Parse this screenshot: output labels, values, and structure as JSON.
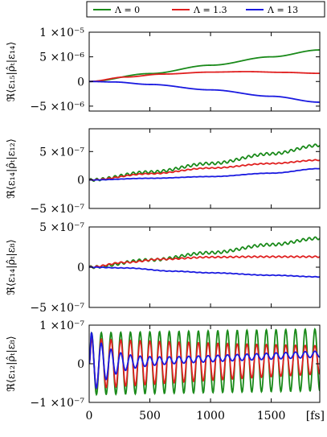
{
  "chart_data": [
    {
      "type": "line",
      "ylabel": "ℜ⟨ε₁₅|ρ̂ₜ|ε₁₄⟩",
      "ylim": [
        -6e-06,
        1e-05
      ],
      "yticks": [
        "1 ×10⁻⁵",
        "5 ×10⁻⁶",
        "0",
        "−5 ×10⁻⁶"
      ],
      "ytick_values": [
        1e-05,
        5e-06,
        0,
        -5e-06
      ],
      "series": [
        {
          "name": "Λ = 0",
          "color": "#1a8a1a",
          "x": [
            0,
            500,
            1000,
            1500,
            1900
          ],
          "y": [
            0,
            1.6e-06,
            3.3e-06,
            5e-06,
            6.4e-06
          ],
          "osc_amp": 0,
          "osc_period": 52
        },
        {
          "name": "Λ = 1.3",
          "color": "#e02020",
          "x": [
            0,
            300,
            600,
            1000,
            1300,
            1600,
            1900
          ],
          "y": [
            0,
            9e-07,
            1.5e-06,
            1.9e-06,
            2e-06,
            1.85e-06,
            1.65e-06
          ],
          "osc_amp": 0,
          "osc_period": 52
        },
        {
          "name": "Λ = 13",
          "color": "#1a1ae0",
          "x": [
            0,
            200,
            500,
            1000,
            1500,
            1900
          ],
          "y": [
            0,
            -1e-07,
            -6e-07,
            -1.7e-06,
            -3e-06,
            -4.2e-06
          ],
          "osc_amp": 0,
          "osc_period": 52
        }
      ]
    },
    {
      "type": "line",
      "ylabel": "ℜ⟨ε₁₄|ρ̂ₜ|ε₁₂⟩",
      "ylim": [
        -5e-07,
        9e-07
      ],
      "yticks": [
        "5 ×10⁻⁷",
        "0",
        "−5 ×10⁻⁷"
      ],
      "ytick_values": [
        5e-07,
        0,
        -5e-07
      ],
      "series": [
        {
          "name": "Λ = 0",
          "color": "#1a8a1a",
          "x": [
            0,
            500,
            1000,
            1500,
            1900
          ],
          "y": [
            0,
            1.4e-07,
            2.9e-07,
            4.6e-07,
            6.1e-07
          ],
          "osc_amp": 2.2e-08,
          "osc_period": 50
        },
        {
          "name": "Λ = 1.3",
          "color": "#e02020",
          "x": [
            0,
            500,
            1000,
            1500,
            1900
          ],
          "y": [
            0,
            1.1e-07,
            2.1e-07,
            2.9e-07,
            3.5e-07
          ],
          "osc_amp": 8e-09,
          "osc_period": 50
        },
        {
          "name": "Λ = 13",
          "color": "#1a1ae0",
          "x": [
            0,
            500,
            1000,
            1500,
            1900
          ],
          "y": [
            0,
            3e-08,
            6e-08,
            1.2e-07,
            2e-07
          ],
          "osc_amp": 2e-09,
          "osc_period": 50
        }
      ]
    },
    {
      "type": "line",
      "ylabel": "ℜ⟨ε₁₄|ρ̂ₜ|ε₈⟩",
      "ylim": [
        -5e-07,
        5e-07
      ],
      "yticks": [
        "5 ×10⁻⁷",
        "0",
        "−5 ×10⁻⁷"
      ],
      "ytick_values": [
        5e-07,
        0,
        -5e-07
      ],
      "series": [
        {
          "name": "Λ = 0",
          "color": "#1a8a1a",
          "x": [
            0,
            500,
            1000,
            1500,
            1900
          ],
          "y": [
            0,
            9e-08,
            1.8e-07,
            2.8e-07,
            3.6e-07
          ],
          "osc_amp": 1.6e-08,
          "osc_period": 50
        },
        {
          "name": "Λ = 1.3",
          "color": "#e02020",
          "x": [
            0,
            300,
            600,
            1000,
            1400,
            1900
          ],
          "y": [
            0,
            6e-08,
            1e-07,
            1.25e-07,
            1.3e-07,
            1.3e-07
          ],
          "osc_amp": 8e-09,
          "osc_period": 50
        },
        {
          "name": "Λ = 13",
          "color": "#1a1ae0",
          "x": [
            0,
            300,
            700,
            1000,
            1500,
            1900
          ],
          "y": [
            0,
            -1e-08,
            -5e-08,
            -7e-08,
            -1e-07,
            -1.2e-07
          ],
          "osc_amp": 3e-09,
          "osc_period": 50
        }
      ]
    },
    {
      "type": "line",
      "ylabel": "ℜ⟨ε₁₂|ρ̂ₜ|ε₈⟩",
      "xlabel": "[fs]",
      "ylim": [
        -1e-07,
        1e-07
      ],
      "yticks": [
        "1 ×10⁻⁷",
        "0",
        "−1 ×10⁻⁷"
      ],
      "ytick_values": [
        1e-07,
        0,
        -1e-07
      ],
      "xticks": [
        0,
        500,
        1000,
        1500
      ],
      "xlim": [
        0,
        1900
      ],
      "series": [
        {
          "name": "Λ = 0",
          "color": "#1a8a1a",
          "amp": 8e-08,
          "decay": 0,
          "period": 80,
          "trend_end": 1e-08
        },
        {
          "name": "Λ = 1.3",
          "color": "#e02020",
          "amp": 6.5e-08,
          "decay": 0.0003,
          "period": 80,
          "trend_end": 1e-08
        },
        {
          "name": "Λ = 13",
          "color": "#1a1ae0",
          "amp": 8e-08,
          "decay": 0.006,
          "period": 80,
          "trend_end": 2.5e-08
        }
      ]
    }
  ],
  "legend": {
    "entries": [
      {
        "label": "Λ = 0",
        "color": "#1a8a1a"
      },
      {
        "label": "Λ = 1.3",
        "color": "#e02020"
      },
      {
        "label": "Λ = 13",
        "color": "#1a1ae0"
      }
    ]
  },
  "xlim": [
    0,
    1900
  ],
  "xticks": [
    0,
    500,
    1000,
    1500
  ],
  "xlabel": "[fs]"
}
